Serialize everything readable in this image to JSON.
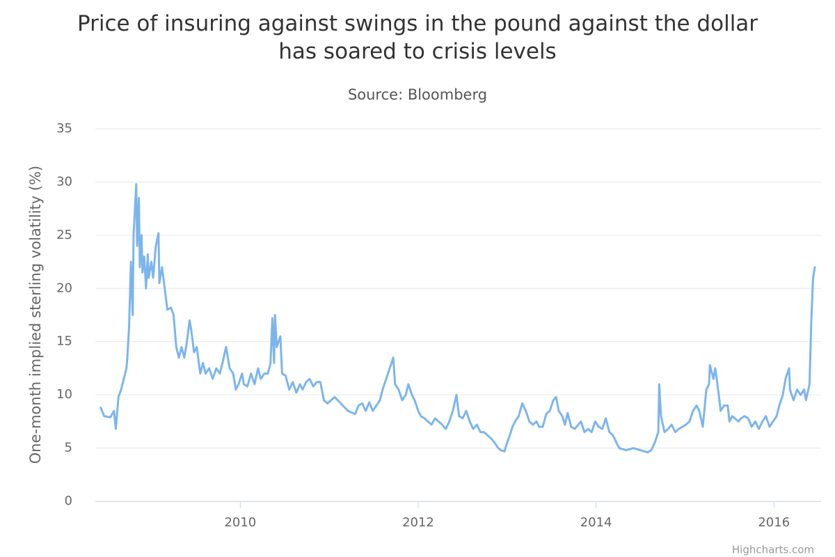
{
  "chart_data": {
    "type": "line",
    "title": "Price of insuring against swings in the pound against the dollar has soared to crisis levels",
    "subtitle": "Source: Bloomberg",
    "y_label": "One-month implied sterling volatility (%)",
    "credits": "Highcharts.com",
    "xlim": [
      2008.37,
      2016.53
    ],
    "xticks": [
      2010,
      2012,
      2014,
      2016
    ],
    "ylim": [
      0,
      35
    ],
    "yticks": [
      0,
      5,
      10,
      15,
      20,
      25,
      30,
      35
    ],
    "grid": true,
    "x": [
      2008.43,
      2008.47,
      2008.54,
      2008.58,
      2008.6,
      2008.63,
      2008.66,
      2008.69,
      2008.72,
      2008.73,
      2008.75,
      2008.77,
      2008.79,
      2008.8,
      2008.83,
      2008.84,
      2008.86,
      2008.87,
      2008.89,
      2008.9,
      2008.92,
      2008.94,
      2008.96,
      2008.97,
      2009.0,
      2009.02,
      2009.05,
      2009.08,
      2009.09,
      2009.12,
      2009.15,
      2009.18,
      2009.22,
      2009.25,
      2009.28,
      2009.31,
      2009.34,
      2009.37,
      2009.4,
      2009.43,
      2009.45,
      2009.48,
      2009.51,
      2009.55,
      2009.58,
      2009.61,
      2009.65,
      2009.69,
      2009.73,
      2009.77,
      2009.8,
      2009.84,
      2009.88,
      2009.92,
      2009.95,
      2009.98,
      2010.02,
      2010.04,
      2010.08,
      2010.12,
      2010.16,
      2010.2,
      2010.23,
      2010.27,
      2010.31,
      2010.34,
      2010.36,
      2010.38,
      2010.39,
      2010.41,
      2010.45,
      2010.47,
      2010.51,
      2010.55,
      2010.59,
      2010.63,
      2010.67,
      2010.7,
      2010.74,
      2010.78,
      2010.82,
      2010.86,
      2010.9,
      2010.94,
      2010.98,
      2011.06,
      2011.13,
      2011.21,
      2011.29,
      2011.33,
      2011.37,
      2011.41,
      2011.45,
      2011.49,
      2011.53,
      2011.57,
      2011.6,
      2011.64,
      2011.68,
      2011.72,
      2011.74,
      2011.78,
      2011.82,
      2011.86,
      2011.89,
      2011.93,
      2011.96,
      2012.0,
      2012.03,
      2012.07,
      2012.11,
      2012.15,
      2012.19,
      2012.23,
      2012.27,
      2012.31,
      2012.35,
      2012.39,
      2012.43,
      2012.46,
      2012.5,
      2012.54,
      2012.58,
      2012.62,
      2012.66,
      2012.7,
      2012.74,
      2012.78,
      2012.82,
      2012.86,
      2012.9,
      2012.93,
      2012.97,
      2013.0,
      2013.03,
      2013.06,
      2013.09,
      2013.13,
      2013.17,
      2013.21,
      2013.25,
      2013.29,
      2013.33,
      2013.36,
      2013.4,
      2013.44,
      2013.48,
      2013.52,
      2013.55,
      2013.58,
      2013.62,
      2013.65,
      2013.68,
      2013.72,
      2013.76,
      2013.8,
      2013.83,
      2013.87,
      2013.91,
      2013.95,
      2013.99,
      2014.03,
      2014.07,
      2014.11,
      2014.15,
      2014.19,
      2014.23,
      2014.26,
      2014.34,
      2014.42,
      2014.5,
      2014.58,
      2014.62,
      2014.66,
      2014.7,
      2014.71,
      2014.73,
      2014.77,
      2014.81,
      2014.85,
      2014.89,
      2014.93,
      2014.97,
      2015.01,
      2015.05,
      2015.09,
      2015.13,
      2015.16,
      2015.2,
      2015.24,
      2015.27,
      2015.28,
      2015.32,
      2015.34,
      2015.38,
      2015.4,
      2015.44,
      2015.48,
      2015.5,
      2015.53,
      2015.56,
      2015.6,
      2015.63,
      2015.67,
      2015.71,
      2015.75,
      2015.79,
      2015.83,
      2015.87,
      2015.91,
      2015.95,
      2015.99,
      2016.03,
      2016.06,
      2016.1,
      2016.13,
      2016.17,
      2016.18,
      2016.22,
      2016.26,
      2016.3,
      2016.34,
      2016.36,
      2016.4,
      2016.42,
      2016.44,
      2016.46
    ],
    "series": [
      {
        "color": "#7cb5ec",
        "values": [
          8.8,
          8.0,
          7.9,
          8.5,
          6.8,
          9.8,
          10.5,
          11.5,
          12.5,
          13.5,
          16.5,
          22.5,
          17.5,
          25,
          29.8,
          24,
          28.5,
          22,
          25,
          21.5,
          23,
          20,
          23.2,
          21,
          22.5,
          21,
          24,
          25.2,
          20.5,
          22,
          20,
          18,
          18.2,
          17.5,
          14.5,
          13.5,
          14.5,
          13.5,
          15,
          17,
          16,
          14,
          14.5,
          12,
          13,
          12,
          12.5,
          11.5,
          12.5,
          12,
          13,
          14.5,
          12.5,
          12,
          10.5,
          11,
          12,
          11,
          10.8,
          12,
          11,
          12.5,
          11.5,
          12,
          12,
          13,
          17.2,
          13,
          17.5,
          14.5,
          15.5,
          12,
          11.8,
          10.5,
          11.2,
          10.2,
          11,
          10.5,
          11.2,
          11.5,
          10.8,
          11.2,
          11.2,
          9.5,
          9.2,
          9.8,
          9.2,
          8.5,
          8.2,
          9,
          9.2,
          8.5,
          9.3,
          8.5,
          9,
          9.5,
          10.5,
          11.5,
          12.5,
          13.5,
          11,
          10.5,
          9.5,
          10,
          11,
          10,
          9.5,
          8.5,
          8,
          7.8,
          7.5,
          7.2,
          7.8,
          7.5,
          7.2,
          6.8,
          7.5,
          8.5,
          10,
          8,
          7.8,
          8.5,
          7.5,
          6.8,
          7.2,
          6.5,
          6.5,
          6.2,
          5.9,
          5.5,
          5,
          4.8,
          4.7,
          5.5,
          6.2,
          7,
          7.5,
          8,
          9.2,
          8.5,
          7.5,
          7.2,
          7.5,
          7,
          7,
          8.2,
          8.5,
          9.5,
          9.8,
          8.5,
          8,
          7.2,
          8.3,
          7,
          6.8,
          7.2,
          7.5,
          6.5,
          6.8,
          6.5,
          7.5,
          7,
          6.8,
          7.8,
          6.5,
          6.2,
          5.5,
          5,
          4.8,
          5,
          4.8,
          4.6,
          4.8,
          5.5,
          6.5,
          11,
          8,
          6.5,
          6.8,
          7.2,
          6.5,
          6.8,
          7,
          7.2,
          7.5,
          8.5,
          9,
          8.5,
          7,
          10.5,
          11,
          12.8,
          11.5,
          12.5,
          10,
          8.5,
          9,
          9,
          7.5,
          8,
          7.8,
          7.5,
          7.8,
          8,
          7.8,
          7,
          7.5,
          6.8,
          7.5,
          8,
          7,
          7.5,
          8,
          9,
          10,
          11.5,
          12.5,
          10.5,
          9.5,
          10.5,
          10,
          10.5,
          9.5,
          11,
          17,
          21,
          22
        ]
      }
    ]
  }
}
